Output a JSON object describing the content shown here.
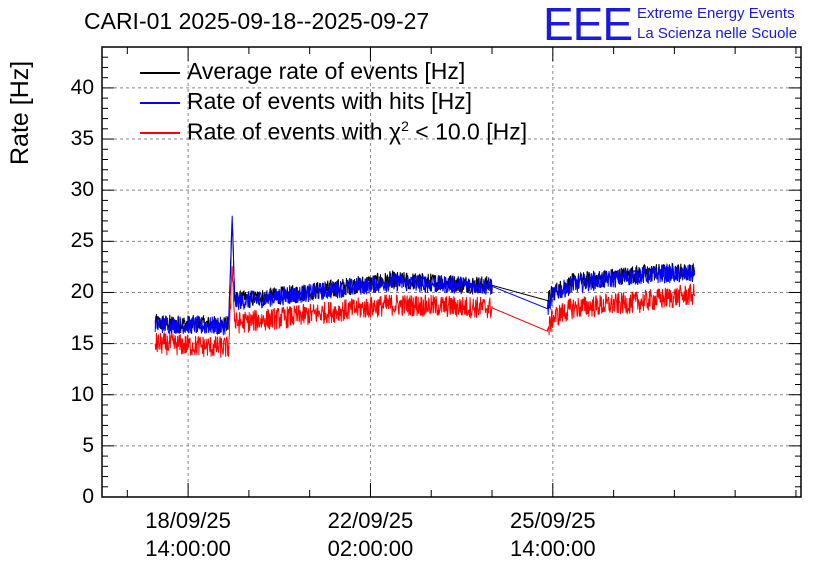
{
  "chart_data": {
    "type": "line",
    "title": "CARI-01 2025-09-18--2025-09-27",
    "ylabel": "Rate [Hz]",
    "xlabel": "",
    "ylim": [
      0,
      44
    ],
    "xlim_hours": [
      -17,
      121
    ],
    "y_ticks": [
      0,
      5,
      10,
      15,
      20,
      25,
      30,
      35,
      40
    ],
    "x_ticks": [
      {
        "hours": 0,
        "date": "18/09/25",
        "time": "14:00:00"
      },
      {
        "hours": 36,
        "date": "22/09/25",
        "time": "02:00:00"
      },
      {
        "hours": 72,
        "date": "25/09/25",
        "time": "14:00:00"
      }
    ],
    "grid": true,
    "legend_position": "top-left",
    "series": [
      {
        "name": "Average rate of events [Hz]",
        "color": "#000000",
        "x_hours": [
          -6.5,
          8,
          8.7,
          9.2,
          20,
          40,
          60,
          71,
          72,
          76,
          88,
          95,
          100
        ],
        "values": [
          17.0,
          16.8,
          27.5,
          19.2,
          19.8,
          21.2,
          20.7,
          19.2,
          20.0,
          21.0,
          21.8,
          22.0,
          22.0
        ]
      },
      {
        "name": "Rate of events with hits [Hz]",
        "color": "#0000ff",
        "x_hours": [
          -6.5,
          8,
          8.7,
          9.2,
          20,
          40,
          60,
          71,
          72,
          76,
          88,
          95,
          100
        ],
        "values": [
          16.9,
          16.7,
          27.5,
          19.1,
          19.7,
          21.0,
          20.6,
          18.4,
          19.8,
          20.8,
          21.6,
          21.8,
          21.8
        ]
      },
      {
        "name": "Rate of events with χ² < 10.0 [Hz]",
        "color": "#ff0000",
        "x_hours": [
          -6.5,
          8,
          8.7,
          9.2,
          20,
          40,
          60,
          71,
          72,
          76,
          88,
          95,
          100
        ],
        "values": [
          15.0,
          14.6,
          22.5,
          17.0,
          17.6,
          18.8,
          18.5,
          16.2,
          17.5,
          18.5,
          19.0,
          19.5,
          19.8
        ]
      }
    ]
  },
  "logo": {
    "mark": "EEE",
    "line1": "Extreme Energy Events",
    "line2": "La Scienza nelle Scuole"
  },
  "legend_parts": {
    "chi_prefix": "Rate of events with ",
    "chi_symbol": "χ",
    "chi_exp": "2",
    "chi_suffix": " < 10.0 [Hz]"
  }
}
